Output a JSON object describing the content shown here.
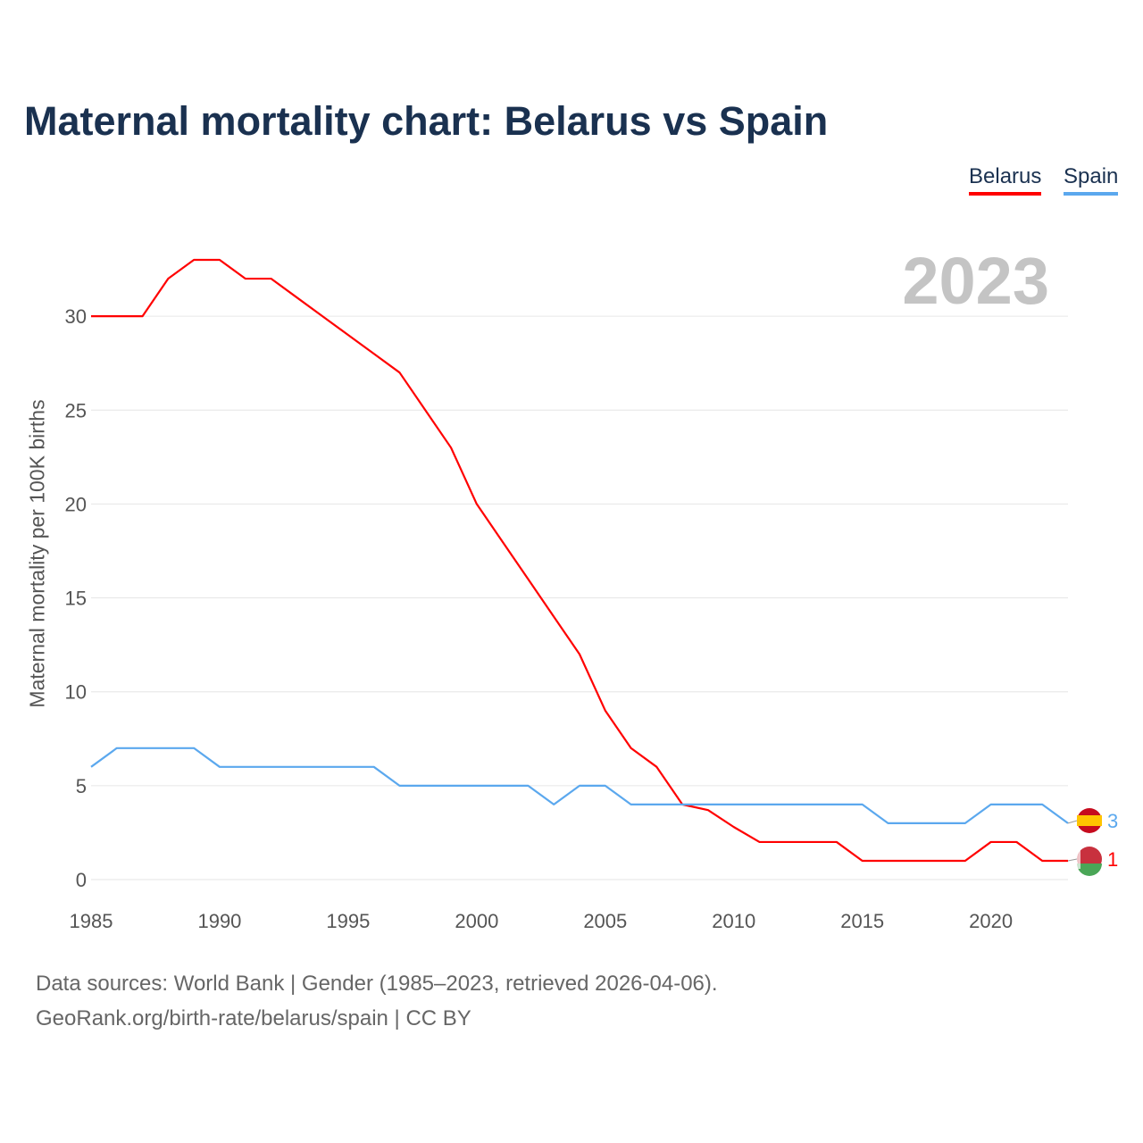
{
  "chart_data": {
    "type": "line",
    "title": "Maternal mortality chart: Belarus vs Spain",
    "ylabel": "Maternal mortality per 100K births",
    "xlabel": "",
    "year_display": "2023",
    "xlim": [
      1985,
      2023
    ],
    "ylim": [
      0,
      33
    ],
    "xticks": [
      1985,
      1990,
      1995,
      2000,
      2005,
      2010,
      2015,
      2020
    ],
    "yticks": [
      0,
      5,
      10,
      15,
      20,
      25,
      30
    ],
    "grid": true,
    "legend_position": "top-right",
    "x": [
      1985,
      1986,
      1987,
      1988,
      1989,
      1990,
      1991,
      1992,
      1993,
      1994,
      1995,
      1996,
      1997,
      1998,
      1999,
      2000,
      2001,
      2002,
      2003,
      2004,
      2005,
      2006,
      2007,
      2008,
      2009,
      2010,
      2011,
      2012,
      2013,
      2014,
      2015,
      2016,
      2017,
      2018,
      2019,
      2020,
      2021,
      2022,
      2023
    ],
    "series": [
      {
        "name": "Belarus",
        "color": "#ff0000",
        "end_label": "1",
        "values": [
          30,
          30,
          30,
          32,
          33,
          33,
          32,
          32,
          31,
          30,
          29,
          28,
          27,
          25,
          23,
          20,
          18,
          16,
          14,
          12,
          9,
          7,
          6,
          4,
          3.7,
          2.8,
          2,
          2,
          2,
          2,
          1,
          1,
          1,
          1,
          1,
          2,
          2,
          1,
          1
        ]
      },
      {
        "name": "Spain",
        "color": "#5ba8ee",
        "end_label": "3",
        "values": [
          6,
          7,
          7,
          7,
          7,
          6,
          6,
          6,
          6,
          6,
          6,
          6,
          5,
          5,
          5,
          5,
          5,
          5,
          4,
          5,
          5,
          4,
          4,
          4,
          4,
          4,
          4,
          4,
          4,
          4,
          4,
          3,
          3,
          3,
          3,
          4,
          4,
          4,
          3
        ]
      }
    ]
  },
  "footer": {
    "line1": "Data sources: World Bank | Gender (1985–2023, retrieved 2026-04-06).",
    "line2": "GeoRank.org/birth-rate/belarus/spain | CC BY"
  }
}
